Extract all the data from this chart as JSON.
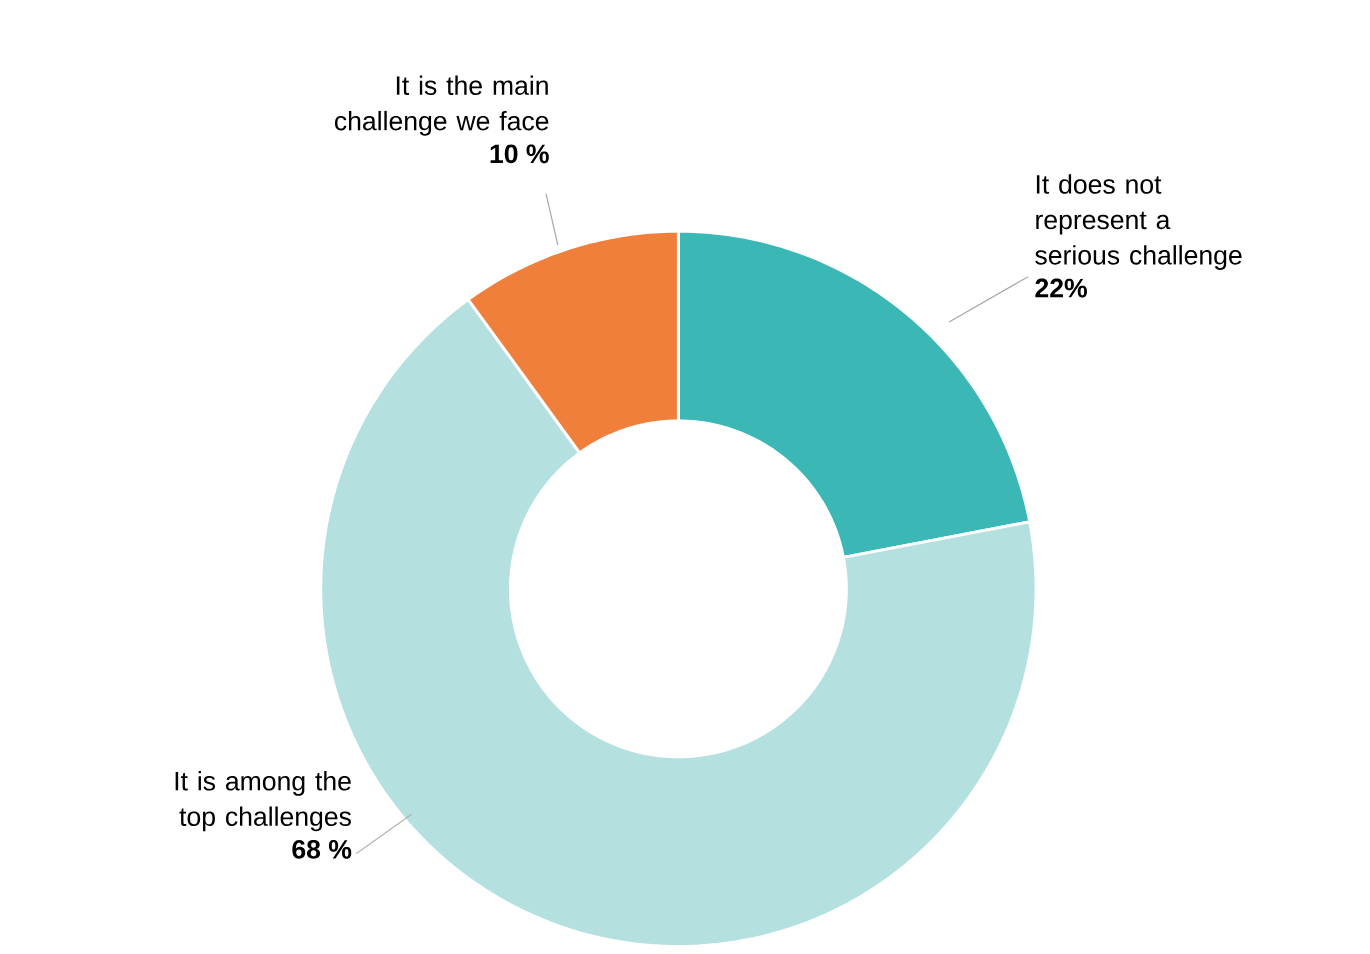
{
  "chart_data": {
    "type": "donut",
    "categories": [
      "It does not represent a serious challenge",
      "It is among the top challenges",
      "It is the main challenge we face"
    ],
    "values": [
      22,
      68,
      10
    ],
    "value_labels": [
      "22%",
      "68 %",
      "10 %"
    ],
    "colors": [
      "#3bb8b5",
      "#b5e0e0",
      "#f07f3c"
    ],
    "legend": false
  }
}
